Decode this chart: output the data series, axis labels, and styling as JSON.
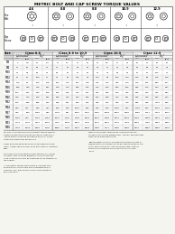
{
  "title": "METRIC BOLT AND CAP SCREW TORQUE VALUES",
  "background_color": "#f5f5f0",
  "title_fontsize": 3.2,
  "class_headers": [
    "Class 8.8",
    "Class 8.8 to 10.9",
    "Class 10.9",
    "Class 12.9"
  ],
  "sub_headers": [
    "Lubricated*",
    "Dry*",
    "Lubricated*",
    "Dry*",
    "Lubricated*",
    "Dry*",
    "Lubricated*",
    "Dry*"
  ],
  "unit_headers": [
    "N.m",
    "lb.ft",
    "N.m",
    "lb.ft",
    "N.m",
    "lb.ft",
    "N.m",
    "lb.ft",
    "N.m",
    "lb.ft",
    "N.m",
    "lb.ft",
    "N.m",
    "lb.ft",
    "N.m",
    "lb.ft"
  ],
  "rows": [
    [
      "M6",
      "9",
      "6.6",
      "12",
      "8.9",
      "11",
      "8.1",
      "14",
      "10",
      "13",
      "9.6",
      "17",
      "13",
      "15",
      "11",
      "20",
      "15"
    ],
    [
      "M8",
      "22",
      "16",
      "29",
      "21",
      "27",
      "20",
      "36",
      "26",
      "32",
      "24",
      "43",
      "31",
      "38",
      "28",
      "51",
      "37"
    ],
    [
      "M10",
      "43",
      "32",
      "58",
      "43",
      "53",
      "39",
      "70",
      "52",
      "63",
      "47",
      "85",
      "62",
      "75",
      "55",
      "100",
      "74"
    ],
    [
      "M12",
      "75",
      "55",
      "100",
      "74",
      "93",
      "69",
      "125",
      "92",
      "110",
      "81",
      "150",
      "110",
      "130",
      "96",
      "175",
      "129"
    ],
    [
      "M14",
      "120",
      "88",
      "160",
      "118",
      "150",
      "110",
      "200",
      "148",
      "175",
      "129",
      "235",
      "173",
      "210",
      "155",
      "280",
      "207"
    ],
    [
      "M16",
      "185",
      "136",
      "245",
      "181",
      "230",
      "170",
      "305",
      "225",
      "270",
      "199",
      "360",
      "266",
      "325",
      "240",
      "430",
      "317"
    ],
    [
      "M18",
      "260",
      "192",
      "350",
      "258",
      "320",
      "236",
      "430",
      "317",
      "380",
      "280",
      "510",
      "376",
      "455",
      "336",
      "610",
      "450"
    ],
    [
      "M20",
      "370",
      "273",
      "490",
      "361",
      "460",
      "339",
      "610",
      "450",
      "540",
      "398",
      "720",
      "531",
      "645",
      "476",
      "860",
      "634"
    ],
    [
      "M22",
      "500",
      "369",
      "665",
      "490",
      "625",
      "461",
      "830",
      "612",
      "735",
      "542",
      "975",
      "719",
      "875",
      "645",
      "1165",
      "859"
    ],
    [
      "M24",
      "640",
      "472",
      "850",
      "627",
      "800",
      "590",
      "1060",
      "782",
      "940",
      "693",
      "1250",
      "922",
      "1125",
      "830",
      "1500",
      "1106"
    ],
    [
      "M27",
      "940",
      "693",
      "1250",
      "922",
      "1175",
      "867",
      "1560",
      "1151",
      "1380",
      "1018",
      "1830",
      "1350",
      "1650",
      "1217",
      "2200",
      "1622"
    ],
    [
      "M30",
      "1280",
      "944",
      "1700",
      "1254",
      "1600",
      "1180",
      "2125",
      "1568",
      "1875",
      "1383",
      "2500",
      "1843",
      "2250",
      "1659",
      "3000",
      "2213"
    ],
    [
      "M33",
      "1730",
      "1276",
      "2300",
      "1696",
      "2160",
      "1593",
      "2875",
      "2120",
      "2530",
      "1866",
      "3375",
      "2489",
      "3050",
      "2250",
      "4050",
      "2987"
    ],
    [
      "M36",
      "2275",
      "1678",
      "3025",
      "2231",
      "2850",
      "2102",
      "3800",
      "2803",
      "3350",
      "2471",
      "4450",
      "3282",
      "4000",
      "2950",
      "5350",
      "3945"
    ]
  ],
  "footer_left": [
    "DO NOT use these values if a different torque value or",
    "tightening procedure is given for specific application.",
    "Torque values listed are for general use only. Check",
    "tightness of fasteners periodically.",
    "",
    "Shear bolts are designed to fail under predetermined",
    "loads. Always replace shear bolts with identical property",
    "class.",
    "",
    "Fasteners should be replaced with the same or higher",
    "property class. If higher property class fasteners are",
    "used, these should only be tightened to the strength of",
    "the original.",
    "",
    "* 'Lubricated' means coated with a lubricant such",
    "as engine oil, or fasteners with phosphate and oil",
    "coatings. 'Dry' means plain or zinc plated without",
    "any lubrication."
  ],
  "footer_right": [
    "Make sure fastener threads are clean and that you",
    "properly start thread engagement. This will prevent them",
    "from failing when tightening.",
    "",
    "Tighten plastic insert or crimped steel-type lock nuts to",
    "approximately 50 percent of the dry torque shown in this",
    "chart, applying the nut, not to the bolt head. Tighten",
    "serrated or centerlock nuts nuts to the full torque",
    "value."
  ],
  "diagram_section_labels_top": [
    "4.6",
    "8.8",
    "8.8",
    "10.9",
    "12.9"
  ],
  "diagram_left_labels": [
    "Hex\nBolt",
    "Cap\nScrew\n& Bolt"
  ],
  "bolt_nut_label": [
    "A",
    "B",
    "C",
    "D",
    "E"
  ]
}
